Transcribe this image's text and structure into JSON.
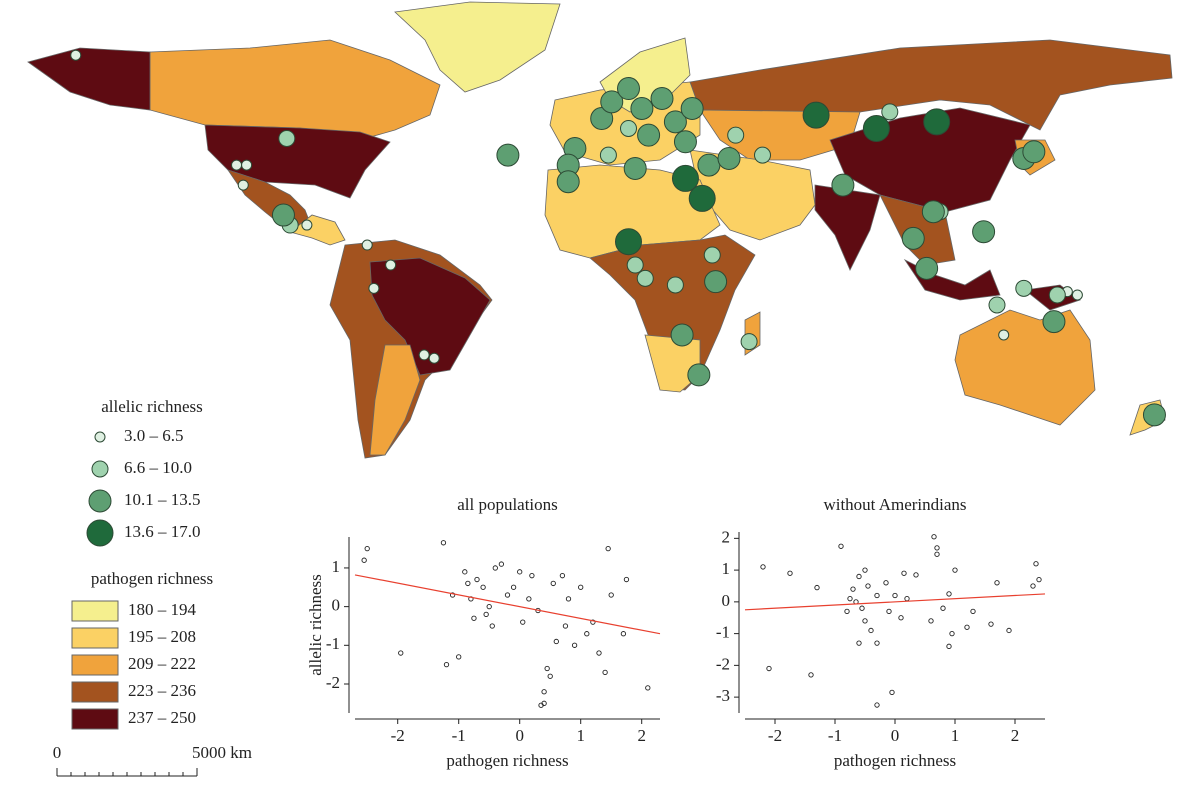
{
  "map": {
    "allelic_legend": {
      "title": "allelic richness",
      "items": [
        {
          "label": "3.0 – 6.5",
          "color": "#dff0e2"
        },
        {
          "label": "6.6 – 10.0",
          "color": "#9fd2ae"
        },
        {
          "label": "10.1 – 13.5",
          "color": "#5e9f72"
        },
        {
          "label": "13.6 – 17.0",
          "color": "#1f6a3b"
        }
      ]
    },
    "pathogen_legend": {
      "title": "pathogen richness",
      "items": [
        {
          "label": "180 – 194",
          "color": "#f5ef8e"
        },
        {
          "label": "195 – 208",
          "color": "#fbd164"
        },
        {
          "label": "209 – 222",
          "color": "#f0a33c"
        },
        {
          "label": "223 – 236",
          "color": "#a3531f"
        },
        {
          "label": "237 – 250",
          "color": "#5e0b12"
        }
      ]
    },
    "scale_bar": {
      "start_label": "0",
      "end_label": "5000 km"
    },
    "populations": [
      {
        "lon": -155,
        "lat": 66,
        "class": 0
      },
      {
        "lon": -92,
        "lat": 41,
        "class": 1
      },
      {
        "lon": -107,
        "lat": 33,
        "class": 0
      },
      {
        "lon": -104,
        "lat": 33,
        "class": 0
      },
      {
        "lon": -105,
        "lat": 27,
        "class": 0
      },
      {
        "lon": -93,
        "lat": 18,
        "class": 2
      },
      {
        "lon": -91,
        "lat": 15,
        "class": 1
      },
      {
        "lon": -86,
        "lat": 15,
        "class": 0
      },
      {
        "lon": -68,
        "lat": 9,
        "class": 0
      },
      {
        "lon": -61,
        "lat": 3,
        "class": 0
      },
      {
        "lon": -66,
        "lat": -4,
        "class": 0
      },
      {
        "lon": -51,
        "lat": -24,
        "class": 0
      },
      {
        "lon": -48,
        "lat": -25,
        "class": 0
      },
      {
        "lon": -26,
        "lat": 36,
        "class": 2
      },
      {
        "lon": -6,
        "lat": 38,
        "class": 2
      },
      {
        "lon": -8,
        "lat": 33,
        "class": 2
      },
      {
        "lon": -8,
        "lat": 28,
        "class": 2
      },
      {
        "lon": 2,
        "lat": 47,
        "class": 2
      },
      {
        "lon": 5,
        "lat": 52,
        "class": 2
      },
      {
        "lon": 10,
        "lat": 56,
        "class": 2
      },
      {
        "lon": 14,
        "lat": 50,
        "class": 2
      },
      {
        "lon": 20,
        "lat": 53,
        "class": 2
      },
      {
        "lon": 24,
        "lat": 46,
        "class": 2
      },
      {
        "lon": 29,
        "lat": 50,
        "class": 2
      },
      {
        "lon": 16,
        "lat": 42,
        "class": 2
      },
      {
        "lon": 27,
        "lat": 40,
        "class": 2
      },
      {
        "lon": 10,
        "lat": 44,
        "class": 1
      },
      {
        "lon": 4,
        "lat": 36,
        "class": 1
      },
      {
        "lon": 12,
        "lat": 32,
        "class": 2
      },
      {
        "lon": 27,
        "lat": 29,
        "class": 3
      },
      {
        "lon": 34,
        "lat": 33,
        "class": 2
      },
      {
        "lon": 32,
        "lat": 23,
        "class": 3
      },
      {
        "lon": 40,
        "lat": 35,
        "class": 2
      },
      {
        "lon": 42,
        "lat": 42,
        "class": 1
      },
      {
        "lon": 50,
        "lat": 36,
        "class": 1
      },
      {
        "lon": 10,
        "lat": 10,
        "class": 3
      },
      {
        "lon": 12,
        "lat": 3,
        "class": 1
      },
      {
        "lon": 15,
        "lat": -1,
        "class": 1
      },
      {
        "lon": 24,
        "lat": -3,
        "class": 1
      },
      {
        "lon": 35,
        "lat": 6,
        "class": 1
      },
      {
        "lon": 36,
        "lat": -2,
        "class": 2
      },
      {
        "lon": 26,
        "lat": -18,
        "class": 2
      },
      {
        "lon": 31,
        "lat": -30,
        "class": 2
      },
      {
        "lon": 46,
        "lat": -20,
        "class": 1
      },
      {
        "lon": 66,
        "lat": 48,
        "class": 3
      },
      {
        "lon": 84,
        "lat": 44,
        "class": 3
      },
      {
        "lon": 102,
        "lat": 46,
        "class": 3
      },
      {
        "lon": 88,
        "lat": 49,
        "class": 1
      },
      {
        "lon": 74,
        "lat": 27,
        "class": 2
      },
      {
        "lon": 101,
        "lat": 19,
        "class": 2
      },
      {
        "lon": 103,
        "lat": 19,
        "class": 1
      },
      {
        "lon": 95,
        "lat": 11,
        "class": 2
      },
      {
        "lon": 116,
        "lat": 13,
        "class": 2
      },
      {
        "lon": 99,
        "lat": 2,
        "class": 2
      },
      {
        "lon": 128,
        "lat": -4,
        "class": 1
      },
      {
        "lon": 120,
        "lat": -9,
        "class": 1
      },
      {
        "lon": 138,
        "lat": -6,
        "class": 1
      },
      {
        "lon": 137,
        "lat": -14,
        "class": 2
      },
      {
        "lon": 141,
        "lat": -5,
        "class": 0
      },
      {
        "lon": 144,
        "lat": -6,
        "class": 0
      },
      {
        "lon": 122,
        "lat": -18,
        "class": 0
      },
      {
        "lon": 128,
        "lat": 35,
        "class": 2
      },
      {
        "lon": 131,
        "lat": 37,
        "class": 2
      },
      {
        "lon": 167,
        "lat": -42,
        "class": 2
      }
    ]
  },
  "chart_data": [
    {
      "type": "scatter",
      "title": "all populations",
      "x_label": "pathogen richness",
      "y_label": "allelic richness",
      "xlim": [
        -2.7,
        2.3
      ],
      "ylim": [
        -2.75,
        1.8
      ],
      "xticks": [
        -2,
        -1,
        0,
        1,
        2
      ],
      "yticks": [
        -2,
        -1,
        0,
        1
      ],
      "color": "#222222",
      "x": [
        -2.5,
        -2.55,
        -1.95,
        -1.25,
        -1.2,
        -1.1,
        -1.0,
        -0.9,
        -0.85,
        -0.8,
        -0.75,
        -0.7,
        -0.6,
        -0.55,
        -0.5,
        -0.45,
        -0.4,
        -0.3,
        -0.2,
        -0.1,
        0,
        0.05,
        0.15,
        0.2,
        0.3,
        0.4,
        0.45,
        0.5,
        0.55,
        0.6,
        0.7,
        0.75,
        0.8,
        0.9,
        1.0,
        1.1,
        1.2,
        1.3,
        1.45,
        1.4,
        1.5,
        1.7,
        1.75,
        2.1,
        0.35,
        0.4
      ],
      "values": [
        1.5,
        1.2,
        -1.2,
        1.65,
        -1.5,
        0.3,
        -1.3,
        0.9,
        0.6,
        0.2,
        -0.3,
        0.7,
        0.5,
        -0.2,
        0.0,
        -0.5,
        1.0,
        1.1,
        0.3,
        0.5,
        0.9,
        -0.4,
        0.2,
        0.8,
        -0.1,
        -2.2,
        -1.6,
        -1.8,
        0.6,
        -0.9,
        0.8,
        -0.5,
        0.2,
        -1.0,
        0.5,
        -0.7,
        -0.4,
        -1.2,
        1.5,
        -1.7,
        0.3,
        -0.7,
        0.7,
        -2.1,
        -2.55,
        -2.5
      ],
      "trend": {
        "x": [
          -2.7,
          2.3
        ],
        "values": [
          0.82,
          -0.7
        ],
        "color": "#e8402f"
      }
    },
    {
      "type": "scatter",
      "title": "without Amerindians",
      "x_label": "pathogen richness",
      "xlim": [
        -2.5,
        2.5
      ],
      "ylim": [
        -3.5,
        2.2
      ],
      "xticks": [
        -2,
        -1,
        0,
        1,
        2
      ],
      "yticks": [
        -3,
        -2,
        -1,
        0,
        1,
        2
      ],
      "color": "#222222",
      "x": [
        -2.2,
        -2.1,
        -1.75,
        -1.4,
        -1.3,
        -0.9,
        -0.8,
        -0.75,
        -0.7,
        -0.65,
        -0.6,
        -0.55,
        -0.5,
        -0.5,
        -0.45,
        -0.4,
        -0.3,
        -0.3,
        -0.15,
        -0.05,
        -0.1,
        0,
        0.1,
        0.15,
        0.2,
        0.35,
        0.6,
        0.65,
        0.7,
        0.7,
        0.8,
        0.9,
        0.9,
        0.95,
        1.0,
        1.2,
        1.3,
        1.6,
        1.7,
        1.9,
        2.3,
        2.35,
        2.4,
        -0.3,
        -0.6
      ],
      "values": [
        1.1,
        -2.1,
        0.9,
        -2.3,
        0.45,
        1.75,
        -0.3,
        0.1,
        0.4,
        0.0,
        0.8,
        -0.2,
        1.0,
        -0.6,
        0.5,
        -0.9,
        0.2,
        -1.3,
        0.6,
        -2.85,
        -0.3,
        0.2,
        -0.5,
        0.9,
        0.1,
        0.85,
        -0.6,
        2.05,
        1.5,
        1.7,
        -0.2,
        0.25,
        -1.4,
        -1.0,
        1.0,
        -0.8,
        -0.3,
        -0.7,
        0.6,
        -0.9,
        0.5,
        1.2,
        0.7,
        -3.25,
        -1.3
      ],
      "trend": {
        "x": [
          -2.5,
          2.5
        ],
        "values": [
          -0.25,
          0.25
        ],
        "color": "#e8402f"
      }
    }
  ]
}
